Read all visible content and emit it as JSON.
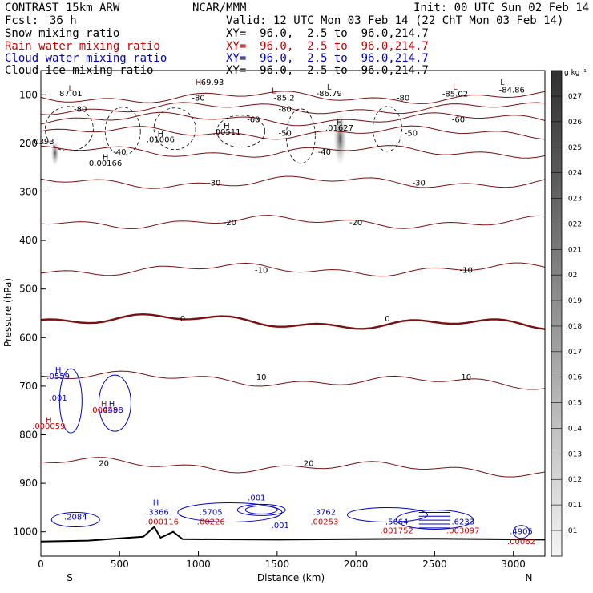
{
  "header": {
    "title": "CONTRAST 15km ARW",
    "fcst_label": "Fcst:",
    "fcst_value": "36 h",
    "center": "NCAR/MMM",
    "init": "Init: 00 UTC Sun 02 Feb 14",
    "valid": "Valid: 12 UTC Mon 03 Feb 14 (22 ChT Mon 03 Feb 14)"
  },
  "fields": [
    {
      "name": "Snow mixing ratio",
      "xy": "XY=  96.0,  2.5 to  96.0,214.7",
      "color": "#000000"
    },
    {
      "name": "Rain water mixing ratio",
      "xy": "XY=  96.0,  2.5 to  96.0,214.7",
      "color": "#cc0000"
    },
    {
      "name": "Cloud water mixing ratio",
      "xy": "XY=  96.0,  2.5 to  96.0,214.7",
      "color": "#0000cc"
    },
    {
      "name": "Cloud ice mixing ratio",
      "xy": "XY=  96.0,  2.5 to  96.0,214.7",
      "color": "#000000"
    }
  ],
  "colors": {
    "temperature_contour": "#7a1010",
    "temperature_zero": "#7a1010",
    "cloud_water": "#0000cc",
    "rain": "#cc0000",
    "terrain": "#000000"
  },
  "chart_data": {
    "type": "cross-section",
    "xlabel": "Distance (km)",
    "ylabel": "Pressure (hPa)",
    "xlim": [
      0,
      3200
    ],
    "ylim": [
      1050,
      50
    ],
    "x_ticks": [
      0,
      500,
      1000,
      1500,
      2000,
      2500,
      3000
    ],
    "y_ticks": [
      100,
      200,
      300,
      400,
      500,
      600,
      700,
      800,
      900,
      1000
    ],
    "endpoints": {
      "left": "S",
      "right": "N"
    },
    "colorbar": {
      "unit": "g kg⁻¹",
      "levels": [
        ".01",
        ".011",
        ".012",
        ".013",
        ".014",
        ".015",
        ".016",
        ".017",
        ".018",
        ".019",
        ".02",
        ".021",
        ".022",
        ".023",
        ".024",
        ".025",
        ".026",
        ".027"
      ]
    },
    "temperature_contours": [
      {
        "label": "-80",
        "x": [
          0,
          3200
        ],
        "p": [
          105,
          105
        ]
      },
      {
        "label": "-80",
        "x": [
          0,
          3200
        ],
        "p": [
          128,
          128
        ]
      },
      {
        "label": "-60",
        "x": [
          0,
          3200
        ],
        "p": [
          150,
          150
        ]
      },
      {
        "label": "-50",
        "x": [
          0,
          3200
        ],
        "p": [
          178,
          178
        ]
      },
      {
        "label": "-40",
        "x": [
          0,
          3200
        ],
        "p": [
          217,
          217
        ]
      },
      {
        "label": "-30",
        "x": [
          0,
          3200
        ],
        "p": [
          280,
          280
        ]
      },
      {
        "label": "-20",
        "x": [
          0,
          3200
        ],
        "p": [
          362,
          362
        ]
      },
      {
        "label": "-10",
        "x": [
          0,
          3200
        ],
        "p": [
          460,
          460
        ]
      },
      {
        "label": "0",
        "x": [
          0,
          3200
        ],
        "p": [
          560,
          560
        ]
      },
      {
        "label": "10",
        "x": [
          0,
          3200
        ],
        "p": [
          680,
          680
        ]
      },
      {
        "label": "20",
        "x": [
          0,
          3200
        ],
        "p": [
          858,
          858
        ]
      }
    ],
    "annotations": [
      {
        "text": "L",
        "x": 190,
        "p": 92,
        "color": "#7a1010"
      },
      {
        "text": "87.01",
        "x": 190,
        "p": 103,
        "color": "#000000"
      },
      {
        "text": "H",
        "x": 1000,
        "p": 80,
        "color": "#7a1010"
      },
      {
        "text": "-69.93",
        "x": 1080,
        "p": 80,
        "color": "#000000"
      },
      {
        "text": "L",
        "x": 1480,
        "p": 97,
        "color": "#7a1010"
      },
      {
        "text": "-85.2",
        "x": 1545,
        "p": 112,
        "color": "#000000"
      },
      {
        "text": "L",
        "x": 1830,
        "p": 90,
        "color": "#7a1010"
      },
      {
        "text": "-86.79",
        "x": 1830,
        "p": 103,
        "color": "#000000"
      },
      {
        "text": "L",
        "x": 2630,
        "p": 90,
        "color": "#7a1010"
      },
      {
        "text": "-85.02",
        "x": 2630,
        "p": 104,
        "color": "#000000"
      },
      {
        "text": "L",
        "x": 2930,
        "p": 80,
        "color": "#7a1010"
      },
      {
        "text": "-84.86",
        "x": 2990,
        "p": 95,
        "color": "#000000"
      },
      {
        "text": "H",
        "x": 1180,
        "p": 170,
        "color": "#000000"
      },
      {
        "text": ".00511",
        "x": 1180,
        "p": 182,
        "color": "#000000"
      },
      {
        "text": "H",
        "x": 760,
        "p": 186,
        "color": "#000000"
      },
      {
        "text": ".01006",
        "x": 760,
        "p": 198,
        "color": "#000000"
      },
      {
        "text": "H",
        "x": 1895,
        "p": 162,
        "color": "#000000"
      },
      {
        "text": ".01627",
        "x": 1895,
        "p": 174,
        "color": "#000000"
      },
      {
        "text": "0393",
        "x": 20,
        "p": 202,
        "color": "#000000"
      },
      {
        "text": "H",
        "x": 410,
        "p": 234,
        "color": "#000000"
      },
      {
        "text": "0.00166",
        "x": 410,
        "p": 246,
        "color": "#000000"
      },
      {
        "text": "H",
        "x": 110,
        "p": 672,
        "color": "#0000cc"
      },
      {
        "text": ".0559",
        "x": 110,
        "p": 685,
        "color": "#0000cc"
      },
      {
        "text": ".001",
        "x": 110,
        "p": 730,
        "color": "#0000cc"
      },
      {
        "text": "H",
        "x": 50,
        "p": 775,
        "color": "#cc0000"
      },
      {
        "text": ".000059",
        "x": 50,
        "p": 788,
        "color": "#cc0000"
      },
      {
        "text": "H",
        "x": 400,
        "p": 742,
        "color": "#cc0000"
      },
      {
        "text": ".00458",
        "x": 400,
        "p": 755,
        "color": "#cc0000"
      },
      {
        "text": "H",
        "x": 450,
        "p": 742,
        "color": "#0000cc"
      },
      {
        "text": ".0498",
        "x": 450,
        "p": 755,
        "color": "#0000cc"
      },
      {
        "text": "H",
        "x": 730,
        "p": 945,
        "color": "#0000cc"
      },
      {
        "text": ".3366",
        "x": 740,
        "p": 965,
        "color": "#0000cc"
      },
      {
        "text": ".000116",
        "x": 770,
        "p": 985,
        "color": "#cc0000"
      },
      {
        "text": ".5705",
        "x": 1080,
        "p": 965,
        "color": "#0000cc"
      },
      {
        "text": ".00226",
        "x": 1080,
        "p": 985,
        "color": "#cc0000"
      },
      {
        "text": ".001",
        "x": 1370,
        "p": 935,
        "color": "#0000cc"
      },
      {
        "text": ".001",
        "x": 1520,
        "p": 992,
        "color": "#0000cc"
      },
      {
        "text": ".3762",
        "x": 1800,
        "p": 965,
        "color": "#0000cc"
      },
      {
        "text": ".00253",
        "x": 1800,
        "p": 985,
        "color": "#cc0000"
      },
      {
        "text": ".5664",
        "x": 2260,
        "p": 985,
        "color": "#0000cc"
      },
      {
        "text": ".001752",
        "x": 2260,
        "p": 1003,
        "color": "#cc0000"
      },
      {
        "text": ".6233",
        "x": 2680,
        "p": 985,
        "color": "#0000cc"
      },
      {
        "text": ".003097",
        "x": 2680,
        "p": 1003,
        "color": "#cc0000"
      },
      {
        "text": ".4905",
        "x": 3050,
        "p": 1005,
        "color": "#0000cc"
      },
      {
        "text": ".00062",
        "x": 3050,
        "p": 1025,
        "color": "#cc0000"
      },
      {
        "text": ".2084",
        "x": 220,
        "p": 975,
        "color": "#0000cc"
      }
    ]
  }
}
